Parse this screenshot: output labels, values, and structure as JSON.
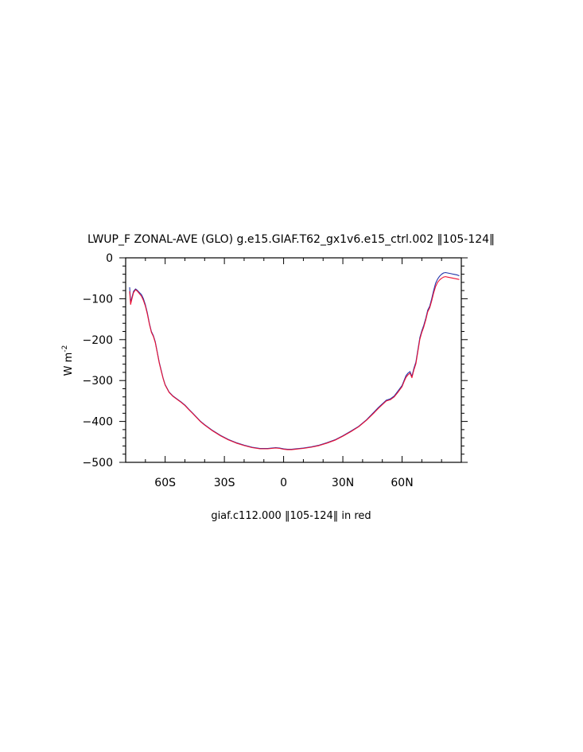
{
  "chart_data": {
    "type": "line",
    "title": "LWUP_F ZONAL-AVE (GLO) g.e15.GIAF.T62_gx1v6.e15_ctrl.002 ‖105-124‖",
    "ylabel": "W m",
    "ylabel_sup": "-2",
    "xlabel": "",
    "xlim": [
      -80,
      90
    ],
    "ylim": [
      -500,
      0
    ],
    "x_tick_labels": [
      {
        "x": -60,
        "label": "60S"
      },
      {
        "x": -30,
        "label": "30S"
      },
      {
        "x": 0,
        "label": "0"
      },
      {
        "x": 30,
        "label": "30N"
      },
      {
        "x": 60,
        "label": "60N"
      }
    ],
    "y_tick_labels": [
      {
        "y": 0,
        "label": "0"
      },
      {
        "y": -100,
        "label": "−100"
      },
      {
        "y": -200,
        "label": "−200"
      },
      {
        "y": -300,
        "label": "−300"
      },
      {
        "y": -400,
        "label": "−400"
      },
      {
        "y": -500,
        "label": "−500"
      }
    ],
    "annotation": "giaf.c112.000 ‖105-124‖ in red",
    "grid": false,
    "series": [
      {
        "color": "#2233aa",
        "x": [
          -78,
          -77.5,
          -77,
          -76,
          -75,
          -74,
          -73,
          -72,
          -71,
          -70,
          -69,
          -68,
          -67,
          -66,
          -65,
          -64,
          -63,
          -62,
          -61,
          -60,
          -58,
          -56,
          -54,
          -52,
          -50,
          -48,
          -46,
          -44,
          -42,
          -40,
          -36,
          -32,
          -28,
          -24,
          -20,
          -16,
          -12,
          -8,
          -4,
          -2,
          0,
          2,
          4,
          6,
          8,
          10,
          14,
          18,
          22,
          26,
          30,
          34,
          38,
          42,
          46,
          48,
          50,
          52,
          54,
          56,
          58,
          60,
          61,
          62,
          63,
          64,
          65,
          66,
          67,
          68,
          69,
          70,
          71,
          72,
          73,
          74,
          75,
          76,
          77,
          78,
          79,
          80,
          81,
          82,
          83,
          84,
          85,
          86,
          87,
          88,
          89
        ],
        "values": [
          -72,
          -108,
          -100,
          -82,
          -76,
          -80,
          -85,
          -90,
          -100,
          -115,
          -135,
          -160,
          -180,
          -190,
          -205,
          -230,
          -255,
          -275,
          -295,
          -310,
          -328,
          -338,
          -345,
          -352,
          -360,
          -370,
          -380,
          -390,
          -400,
          -408,
          -422,
          -434,
          -444,
          -452,
          -458,
          -463,
          -466,
          -466,
          -464,
          -465,
          -467,
          -468,
          -468,
          -467,
          -466,
          -465,
          -462,
          -458,
          -452,
          -445,
          -435,
          -424,
          -412,
          -396,
          -376,
          -366,
          -357,
          -348,
          -345,
          -338,
          -325,
          -312,
          -300,
          -288,
          -282,
          -278,
          -290,
          -270,
          -255,
          -225,
          -195,
          -178,
          -165,
          -148,
          -128,
          -118,
          -100,
          -80,
          -62,
          -52,
          -45,
          -40,
          -37,
          -36,
          -37,
          -38,
          -39,
          -40,
          -41,
          -42,
          -44
        ]
      },
      {
        "color": "#ee1133",
        "x": [
          -78,
          -77.5,
          -77,
          -76,
          -75,
          -74,
          -73,
          -72,
          -71,
          -70,
          -69,
          -68,
          -67,
          -66,
          -65,
          -64,
          -63,
          -62,
          -61,
          -60,
          -58,
          -56,
          -54,
          -52,
          -50,
          -48,
          -46,
          -44,
          -42,
          -40,
          -36,
          -32,
          -28,
          -24,
          -20,
          -16,
          -12,
          -8,
          -4,
          -2,
          0,
          2,
          4,
          6,
          8,
          10,
          14,
          18,
          22,
          26,
          30,
          34,
          38,
          42,
          46,
          48,
          50,
          52,
          54,
          56,
          58,
          60,
          61,
          62,
          63,
          64,
          65,
          66,
          67,
          68,
          69,
          70,
          71,
          72,
          73,
          74,
          75,
          76,
          77,
          78,
          79,
          80,
          81,
          82,
          83,
          84,
          85,
          86,
          87,
          88,
          89
        ],
        "values": [
          -82,
          -114,
          -104,
          -85,
          -78,
          -82,
          -88,
          -94,
          -104,
          -118,
          -138,
          -162,
          -182,
          -192,
          -207,
          -232,
          -257,
          -277,
          -296,
          -311,
          -329,
          -339,
          -346,
          -353,
          -361,
          -371,
          -381,
          -391,
          -401,
          -409,
          -423,
          -435,
          -445,
          -453,
          -459,
          -464,
          -467,
          -467,
          -465,
          -466,
          -468,
          -469,
          -469,
          -468,
          -467,
          -466,
          -463,
          -459,
          -453,
          -446,
          -436,
          -425,
          -413,
          -397,
          -378,
          -368,
          -359,
          -350,
          -347,
          -340,
          -328,
          -315,
          -303,
          -292,
          -286,
          -282,
          -293,
          -274,
          -259,
          -229,
          -199,
          -182,
          -169,
          -152,
          -132,
          -122,
          -105,
          -86,
          -70,
          -60,
          -54,
          -50,
          -47,
          -46,
          -47,
          -48,
          -49,
          -50,
          -51,
          -52,
          -53
        ]
      }
    ]
  }
}
